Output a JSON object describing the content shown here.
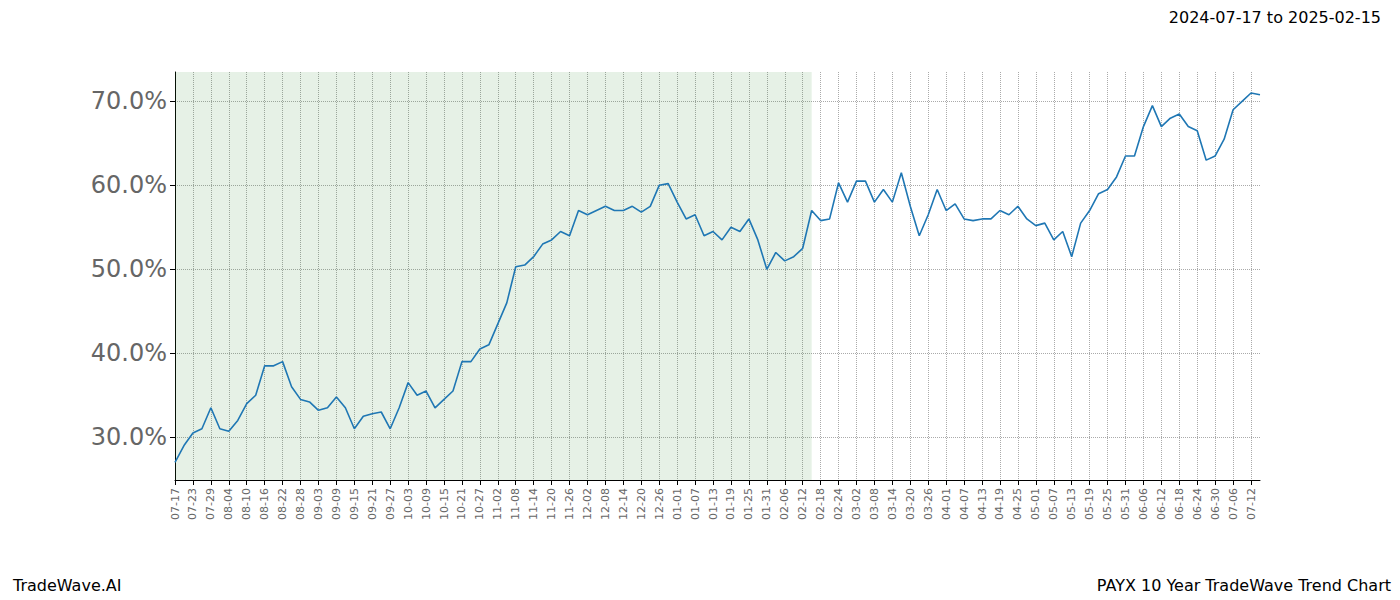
{
  "chart_data": {
    "type": "line",
    "title": "2024-07-17 to 2025-02-15",
    "footer_left": "TradeWave.AI",
    "footer_right": "PAYX 10 Year TradeWave Trend Chart",
    "color": "#1f77b4",
    "grid": true,
    "shade": [
      0,
      71
    ],
    "categories": [
      "07-17",
      null,
      "07-23",
      null,
      "07-29",
      null,
      "08-04",
      null,
      "08-10",
      null,
      "08-16",
      null,
      "08-22",
      null,
      "08-28",
      null,
      "09-03",
      null,
      "09-09",
      null,
      "09-15",
      null,
      "09-21",
      null,
      "09-27",
      null,
      "10-03",
      null,
      "10-09",
      null,
      "10-15",
      null,
      "10-21",
      null,
      "10-27",
      null,
      "11-02",
      null,
      "11-08",
      null,
      "11-14",
      null,
      "11-20",
      null,
      "11-26",
      null,
      "12-02",
      null,
      "12-08",
      null,
      "12-14",
      null,
      "12-20",
      null,
      "12-26",
      null,
      "01-01",
      null,
      "01-07",
      null,
      "01-13",
      null,
      "01-19",
      null,
      "01-25",
      null,
      "01-31",
      null,
      "02-06",
      null,
      "02-12",
      null,
      "02-18",
      null,
      "02-24",
      null,
      "03-02",
      null,
      "03-08",
      null,
      "03-14",
      null,
      "03-20",
      null,
      "03-26",
      null,
      "04-01",
      null,
      "04-07",
      null,
      "04-13",
      null,
      "04-19",
      null,
      "04-25",
      null,
      "05-01",
      null,
      "05-07",
      null,
      "05-13",
      null,
      "05-19",
      null,
      "05-25",
      null,
      "05-31",
      null,
      "06-06",
      null,
      "06-12",
      null,
      "06-18",
      null,
      "06-24",
      null,
      "06-30",
      null,
      "07-06",
      null,
      "07-12",
      null
    ],
    "values": [
      27,
      29,
      30.5,
      31,
      33.5,
      31,
      30.7,
      32,
      34,
      35,
      38.5,
      38.5,
      39,
      36,
      34.5,
      34.2,
      33.2,
      33.5,
      34.8,
      33.5,
      31,
      32.5,
      32.8,
      33,
      31,
      33.5,
      36.5,
      35,
      35.5,
      33.5,
      34.5,
      35.5,
      39,
      39,
      40.5,
      41,
      43.5,
      46,
      50.3,
      50.5,
      51.5,
      53,
      53.5,
      54.5,
      54,
      57,
      56.5,
      57,
      57.5,
      57,
      57,
      57.5,
      56.8,
      57.5,
      60,
      60.2,
      58,
      56,
      56.5,
      54,
      54.5,
      53.5,
      55,
      54.5,
      56,
      53.5,
      50,
      52,
      51,
      51.5,
      52.5,
      57,
      55.8,
      56,
      60.3,
      58,
      60.5,
      60.5,
      58,
      59.5,
      58,
      61.5,
      57.5,
      54,
      56.5,
      59.5,
      57,
      57.8,
      56,
      55.8,
      56,
      56,
      57,
      56.5,
      57.5,
      56,
      55.2,
      55.5,
      53.5,
      54.5,
      51.5,
      55.5,
      57,
      59,
      59.5,
      61,
      63.5,
      63.5,
      67,
      69.5,
      67,
      68,
      68.5,
      67,
      66.5,
      63,
      63.5,
      65.5,
      69,
      70,
      71,
      70.8
    ],
    "ylim": [
      24.9,
      73.5
    ],
    "yticks": [
      {
        "value": 30,
        "label": "30.0%"
      },
      {
        "value": 40,
        "label": "40.0%"
      },
      {
        "value": 50,
        "label": "50.0%"
      },
      {
        "value": 60,
        "label": "60.0%"
      },
      {
        "value": 70,
        "label": "70.0%"
      }
    ]
  }
}
